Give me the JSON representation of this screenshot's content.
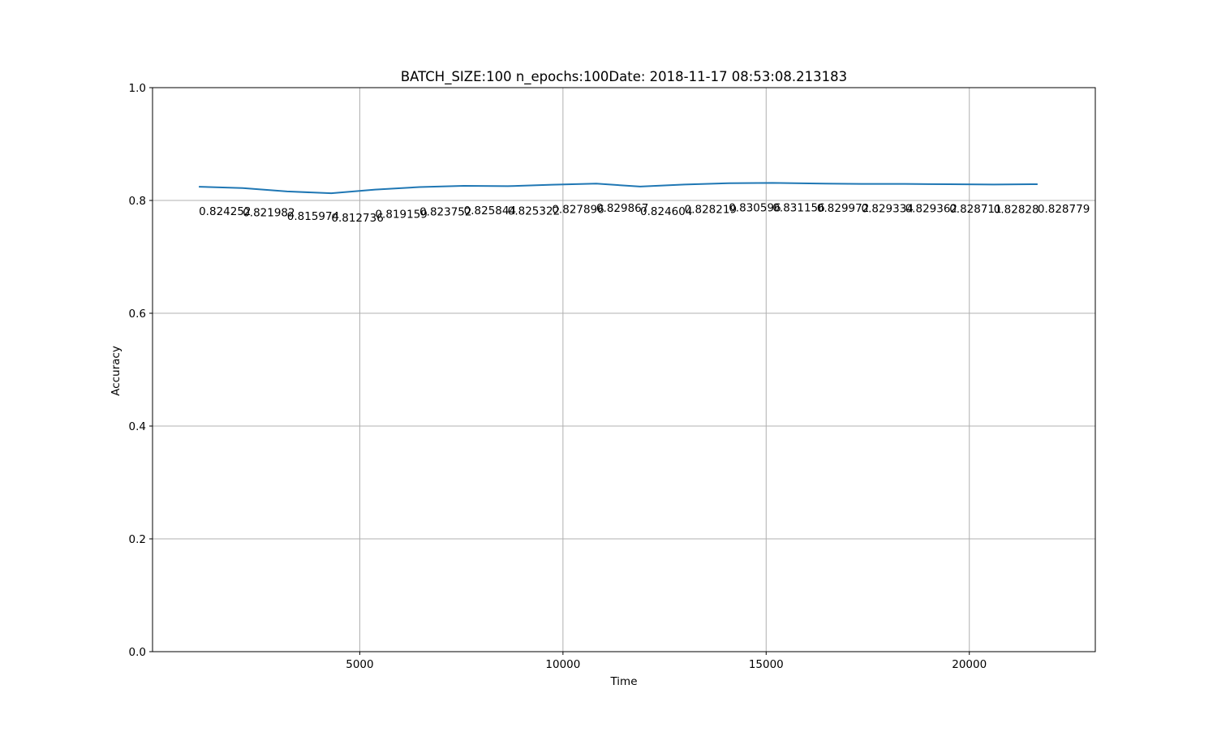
{
  "chart_data": {
    "type": "line",
    "title": "BATCH_SIZE:100 n_epochs:100Date: 2018-11-17 08:53:08.213183",
    "xlabel": "Time",
    "ylabel": "Accuracy",
    "xlim": [
      -100,
      23100
    ],
    "ylim": [
      0.0,
      1.0
    ],
    "x_ticks": [
      5000,
      10000,
      15000,
      20000
    ],
    "x_tick_labels": [
      "5000",
      "10000",
      "15000",
      "20000"
    ],
    "y_ticks": [
      0.0,
      0.2,
      0.4,
      0.6,
      0.8,
      1.0
    ],
    "y_tick_labels": [
      "0.0",
      "0.2",
      "0.4",
      "0.6",
      "0.8",
      "1.0"
    ],
    "grid": true,
    "series": [
      {
        "color": "#1f77b4",
        "x": [
          1040,
          2120,
          3210,
          4300,
          5380,
          6470,
          7560,
          8640,
          9730,
          10820,
          11900,
          12990,
          14080,
          15160,
          16250,
          17340,
          18420,
          19510,
          20600,
          21680
        ],
        "values": [
          0.824252,
          0.821982,
          0.815974,
          0.812736,
          0.819159,
          0.823752,
          0.825844,
          0.825322,
          0.827896,
          0.829867,
          0.824604,
          0.828219,
          0.830596,
          0.831156,
          0.829972,
          0.829334,
          0.829362,
          0.828711,
          0.82828,
          0.828779
        ],
        "labels": [
          "0.824252",
          "0.821982",
          "0.815974",
          "0.812736",
          "0.819159",
          "0.823752",
          "0.825844",
          "0.825322",
          "0.827896",
          "0.829867",
          "0.824604",
          "0.828219",
          "0.830596",
          "0.831156",
          "0.829972",
          "0.829334",
          "0.829362",
          "0.828711",
          "0.82828",
          "0.828779"
        ]
      }
    ]
  }
}
